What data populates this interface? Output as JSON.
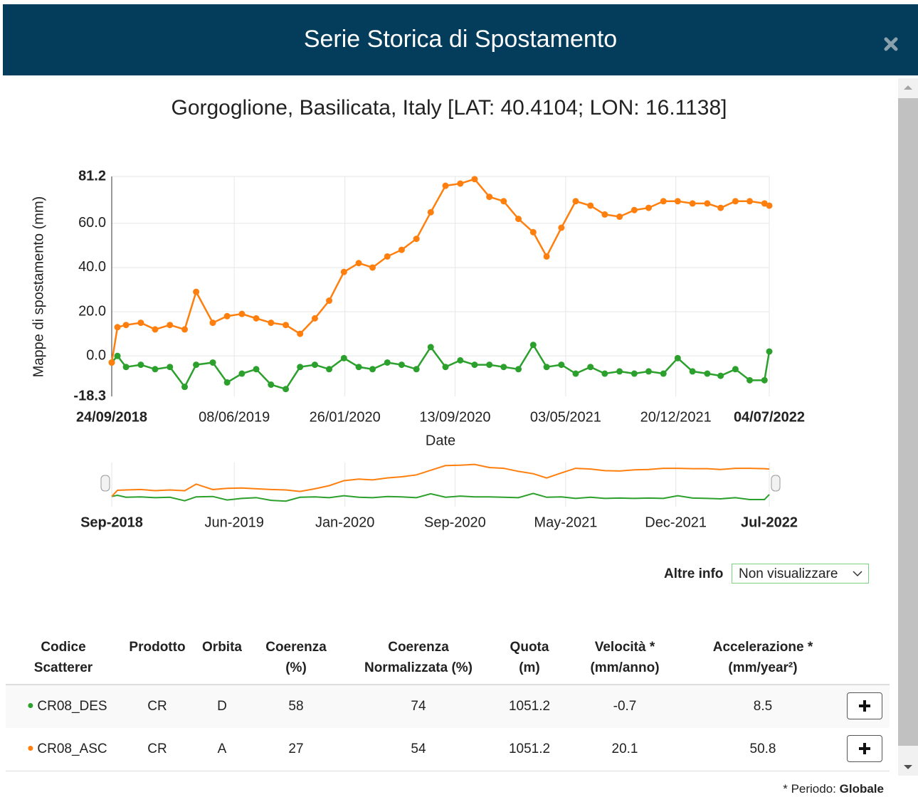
{
  "header": {
    "title": "Serie Storica di Spostamento"
  },
  "location": "Gorgoglione, Basilicata, Italy [LAT: 40.4104; LON: 16.1138]",
  "chart_data": {
    "type": "line",
    "y_label": "Mappe di spostamento (mm)",
    "x_label": "Date",
    "x": [
      "2018-09-24",
      "2018-10-06",
      "2018-10-24",
      "2018-11-24",
      "2018-12-24",
      "2019-01-24",
      "2019-02-24",
      "2019-03-20",
      "2019-04-24",
      "2019-05-24",
      "2019-06-24",
      "2019-07-24",
      "2019-08-24",
      "2019-09-24",
      "2019-10-24",
      "2019-11-24",
      "2019-12-24",
      "2020-01-24",
      "2020-02-24",
      "2020-03-24",
      "2020-04-24",
      "2020-05-24",
      "2020-06-24",
      "2020-07-24",
      "2020-08-24",
      "2020-09-24",
      "2020-10-24",
      "2020-11-24",
      "2020-12-24",
      "2021-01-24",
      "2021-02-24",
      "2021-03-24",
      "2021-04-24",
      "2021-05-24",
      "2021-06-24",
      "2021-07-24",
      "2021-08-24",
      "2021-09-24",
      "2021-10-24",
      "2021-11-24",
      "2021-12-24",
      "2022-01-24",
      "2022-02-24",
      "2022-03-24",
      "2022-04-24",
      "2022-05-24",
      "2022-06-24",
      "2022-07-04"
    ],
    "series": [
      {
        "color": "#2ca02c",
        "values": [
          -3,
          0,
          -5,
          -4,
          -6,
          -5,
          -14,
          -4,
          -3,
          -12,
          -8,
          -6,
          -13,
          -15,
          -5,
          -4,
          -6,
          -1,
          -5,
          -6,
          -3,
          -4,
          -6,
          4,
          -5,
          -2,
          -4,
          -4,
          -5,
          -6,
          5,
          -5,
          -4,
          -8,
          -5,
          -8,
          -7,
          -8,
          -7,
          -8,
          -1,
          -7,
          -8,
          -9,
          -6,
          -11,
          -11,
          2
        ]
      },
      {
        "color": "#ff7f0e",
        "values": [
          -3,
          13,
          14,
          15,
          12,
          14,
          12,
          29,
          15,
          18,
          19,
          17,
          15,
          14,
          10,
          17,
          25,
          38,
          42,
          40,
          45,
          48,
          53,
          65,
          77,
          78,
          80,
          72,
          70,
          62,
          56,
          45,
          58,
          70,
          68,
          64,
          63,
          66,
          67,
          70,
          70,
          69,
          69,
          67,
          70,
          70,
          69,
          68
        ]
      }
    ],
    "xlim": [
      "2018-09-24",
      "2022-07-04"
    ],
    "xticks": [
      {
        "value": "2018-09-24",
        "label": "24/09/2018"
      },
      {
        "value": "2019-06-08",
        "label": "08/06/2019"
      },
      {
        "value": "2020-01-26",
        "label": "26/01/2020"
      },
      {
        "value": "2020-09-13",
        "label": "13/09/2020"
      },
      {
        "value": "2021-05-03",
        "label": "03/05/2021"
      },
      {
        "value": "2021-12-20",
        "label": "20/12/2021"
      },
      {
        "value": "2022-07-04",
        "label": "04/07/2022"
      }
    ],
    "ylim": [
      -18.3,
      81.2
    ],
    "yticks": [
      -18.3,
      {
        "value": 0,
        "label": "0.0"
      },
      {
        "value": 20,
        "label": "20.0"
      },
      {
        "value": 40,
        "label": "40.0"
      },
      {
        "value": 60,
        "label": "60.0"
      },
      81.2
    ],
    "grid": true,
    "navigator": {
      "xticks": [
        {
          "value": "2018-09-24",
          "label": "Sep-2018"
        },
        {
          "value": "2019-06-08",
          "label": "Jun-2019"
        },
        {
          "value": "2020-01-26",
          "label": "Jan-2020"
        },
        {
          "value": "2020-09-13",
          "label": "Sep-2020"
        },
        {
          "value": "2021-05-03",
          "label": "May-2021"
        },
        {
          "value": "2021-12-20",
          "label": "Dec-2021"
        },
        {
          "value": "2022-07-04",
          "label": "Jul-2022"
        }
      ]
    }
  },
  "altre_info": {
    "label": "Altre info",
    "selected": "Non visualizzare"
  },
  "table": {
    "headers": [
      [
        "Codice",
        "Scatterer"
      ],
      [
        "Prodotto"
      ],
      [
        "Orbita"
      ],
      [
        "Coerenza",
        "(%)"
      ],
      [
        "Coerenza",
        "Normalizzata (%)"
      ],
      [
        "Quota",
        "(m)"
      ],
      [
        "Velocità *",
        "(mm/anno)"
      ],
      [
        "Accelerazione *",
        "(mm/year²)"
      ]
    ],
    "rows": [
      [
        "CR08_DES",
        "CR",
        "D",
        58,
        74,
        1051.2,
        -0.7,
        8.5
      ],
      [
        "CR08_ASC",
        "CR",
        "A",
        27,
        54,
        1051.2,
        20.1,
        50.8
      ]
    ]
  },
  "footnote": {
    "text": "* Periodo:",
    "value": "Globale"
  }
}
